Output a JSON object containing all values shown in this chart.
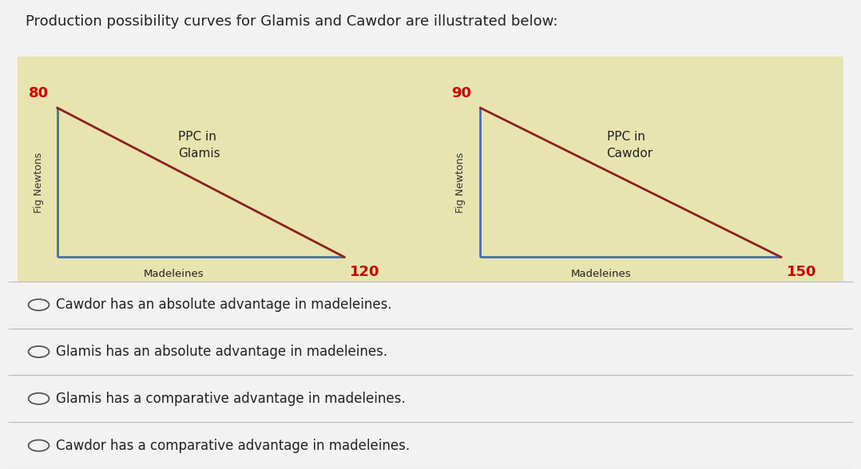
{
  "title": "Production possibility curves for Glamis and Cawdor are illustrated below:",
  "title_fontsize": 13,
  "title_color": "#222222",
  "bg_color_top": "#e8e4b0",
  "bg_color_bottom": "#f2f2f2",
  "glamis": {
    "fig_newtons": 80,
    "madeleines": 120,
    "label": "PPC in\nGlamis",
    "ylabel": "Fig Newtons",
    "xlabel": "Madeleines",
    "line_color": "#8B2020",
    "axis_color": "#4a6fa5"
  },
  "cawdor": {
    "fig_newtons": 90,
    "madeleines": 150,
    "label": "PPC in\nCawdor",
    "ylabel": "Fig Newtons",
    "xlabel": "Madeleines",
    "line_color": "#8B2020",
    "axis_color": "#4a6fa5"
  },
  "choices": [
    "Cawdor has an absolute advantage in madeleines.",
    "Glamis has an absolute advantage in madeleines.",
    "Glamis has a comparative advantage in madeleines.",
    "Cawdor has a comparative advantage in madeleines."
  ],
  "choice_fontsize": 12,
  "number_color": "#cc0000",
  "label_color": "#222222",
  "axis_label_color": "#333333"
}
